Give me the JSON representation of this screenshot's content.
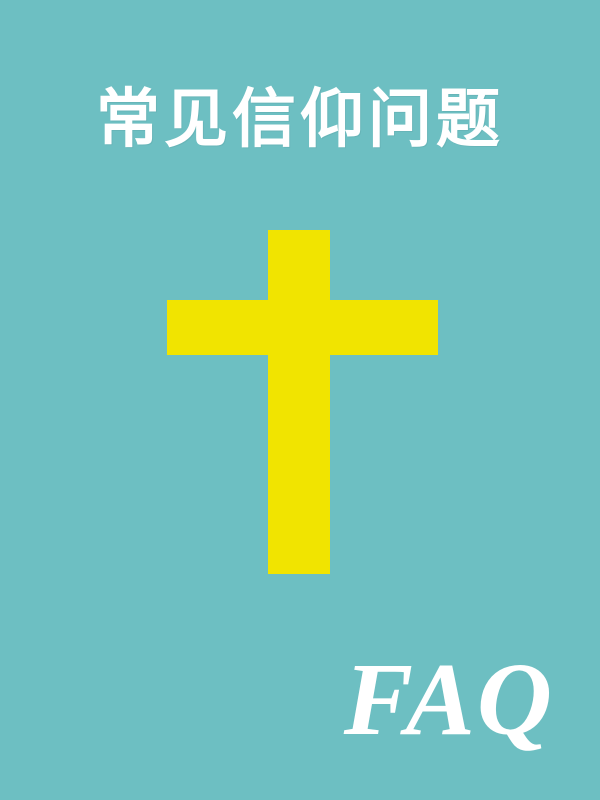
{
  "cover": {
    "title": "常见信仰问题",
    "subtitle": "FAQ"
  },
  "colors": {
    "background": "#6dbfc2",
    "title_text": "#ffffff",
    "cross": "#f1e400",
    "faq_text": "#ffffff"
  },
  "icons": {
    "cross": "christian-cross-icon"
  }
}
